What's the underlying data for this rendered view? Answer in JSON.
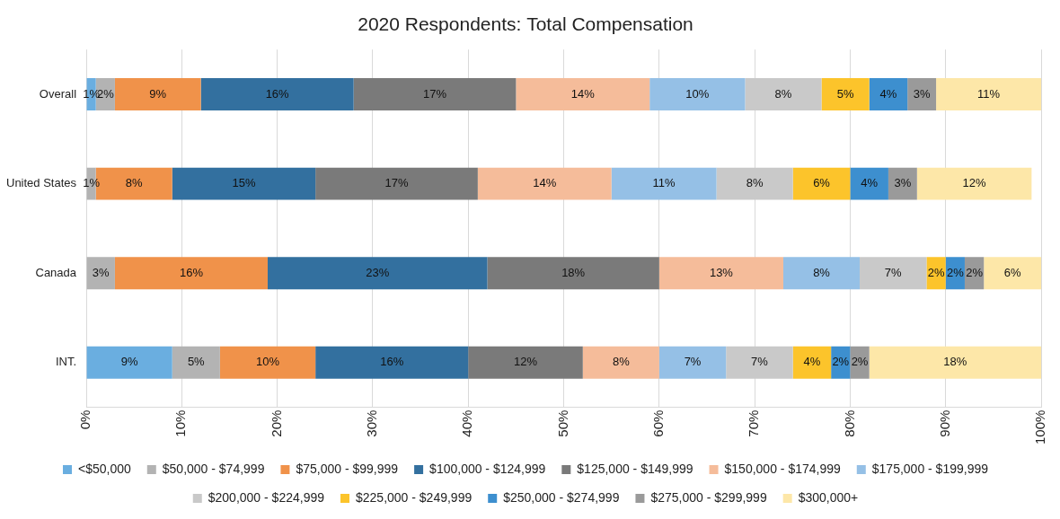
{
  "chart_data": {
    "type": "bar",
    "title": "2020 Respondents: Total Compensation",
    "orientation": "horizontal",
    "stacked": true,
    "data_labels": true,
    "grid": true,
    "legend": "bottom",
    "categories": [
      "Overall",
      "United States",
      "Canada",
      "INT."
    ],
    "xlim": [
      0,
      100
    ],
    "xticks": [
      {
        "value": 0,
        "label": "0%"
      },
      {
        "value": 10,
        "label": "10%"
      },
      {
        "value": 20,
        "label": "20%"
      },
      {
        "value": 30,
        "label": "30%"
      },
      {
        "value": 40,
        "label": "40%"
      },
      {
        "value": 50,
        "label": "50%"
      },
      {
        "value": 60,
        "label": "60%"
      },
      {
        "value": 70,
        "label": "70%"
      },
      {
        "value": 80,
        "label": "80%"
      },
      {
        "value": 90,
        "label": "90%"
      },
      {
        "value": 100,
        "label": "100%"
      }
    ],
    "series": [
      {
        "name": "<$50,000",
        "color": "#6aaee0",
        "values": [
          1,
          0,
          0,
          9
        ],
        "value_labels": [
          "1%",
          null,
          null,
          "9%"
        ]
      },
      {
        "name": "$50,000 - $74,999",
        "color": "#b3b3b3",
        "values": [
          2,
          1,
          3,
          5
        ],
        "value_labels": [
          "2%",
          "1%",
          "3%",
          "5%"
        ]
      },
      {
        "name": "$75,000 - $99,999",
        "color": "#f0924a",
        "values": [
          9,
          8,
          16,
          10
        ],
        "value_labels": [
          "9%",
          "8%",
          "16%",
          "10%"
        ]
      },
      {
        "name": "$100,000 - $124,999",
        "color": "#33709f",
        "values": [
          16,
          15,
          23,
          16
        ],
        "value_labels": [
          "16%",
          "15%",
          "23%",
          "16%"
        ]
      },
      {
        "name": "$125,000 - $149,999",
        "color": "#7a7a7a",
        "values": [
          17,
          17,
          18,
          12
        ],
        "value_labels": [
          "17%",
          "17%",
          "18%",
          "12%"
        ]
      },
      {
        "name": "$150,000 - $174,999",
        "color": "#f5bc9a",
        "values": [
          14,
          14,
          13,
          8
        ],
        "value_labels": [
          "14%",
          "14%",
          "13%",
          "8%"
        ]
      },
      {
        "name": "$175,000 - $199,999",
        "color": "#95c0e6",
        "values": [
          10,
          11,
          8,
          7
        ],
        "value_labels": [
          "10%",
          "11%",
          "8%",
          "7%"
        ]
      },
      {
        "name": "$200,000 - $224,999",
        "color": "#c9c9c9",
        "values": [
          8,
          8,
          7,
          7
        ],
        "value_labels": [
          "8%",
          "8%",
          "7%",
          "7%"
        ]
      },
      {
        "name": "$225,000 - $249,999",
        "color": "#fcc42b",
        "values": [
          5,
          6,
          2,
          4
        ],
        "value_labels": [
          "5%",
          "6%",
          "2%",
          "4%"
        ]
      },
      {
        "name": "$250,000 - $274,999",
        "color": "#3d8fcf",
        "values": [
          4,
          4,
          2,
          2
        ],
        "value_labels": [
          "4%",
          "4%",
          "2%",
          "2%"
        ]
      },
      {
        "name": "$275,000 - $299,999",
        "color": "#9a9a9a",
        "values": [
          3,
          3,
          2,
          2
        ],
        "value_labels": [
          "3%",
          "3%",
          "2%",
          "2%"
        ]
      },
      {
        "name": "$300,000+",
        "color": "#fde7a8",
        "values": [
          11,
          12,
          6,
          18
        ],
        "value_labels": [
          "11%",
          "12%",
          "6%",
          "18%"
        ]
      }
    ]
  }
}
